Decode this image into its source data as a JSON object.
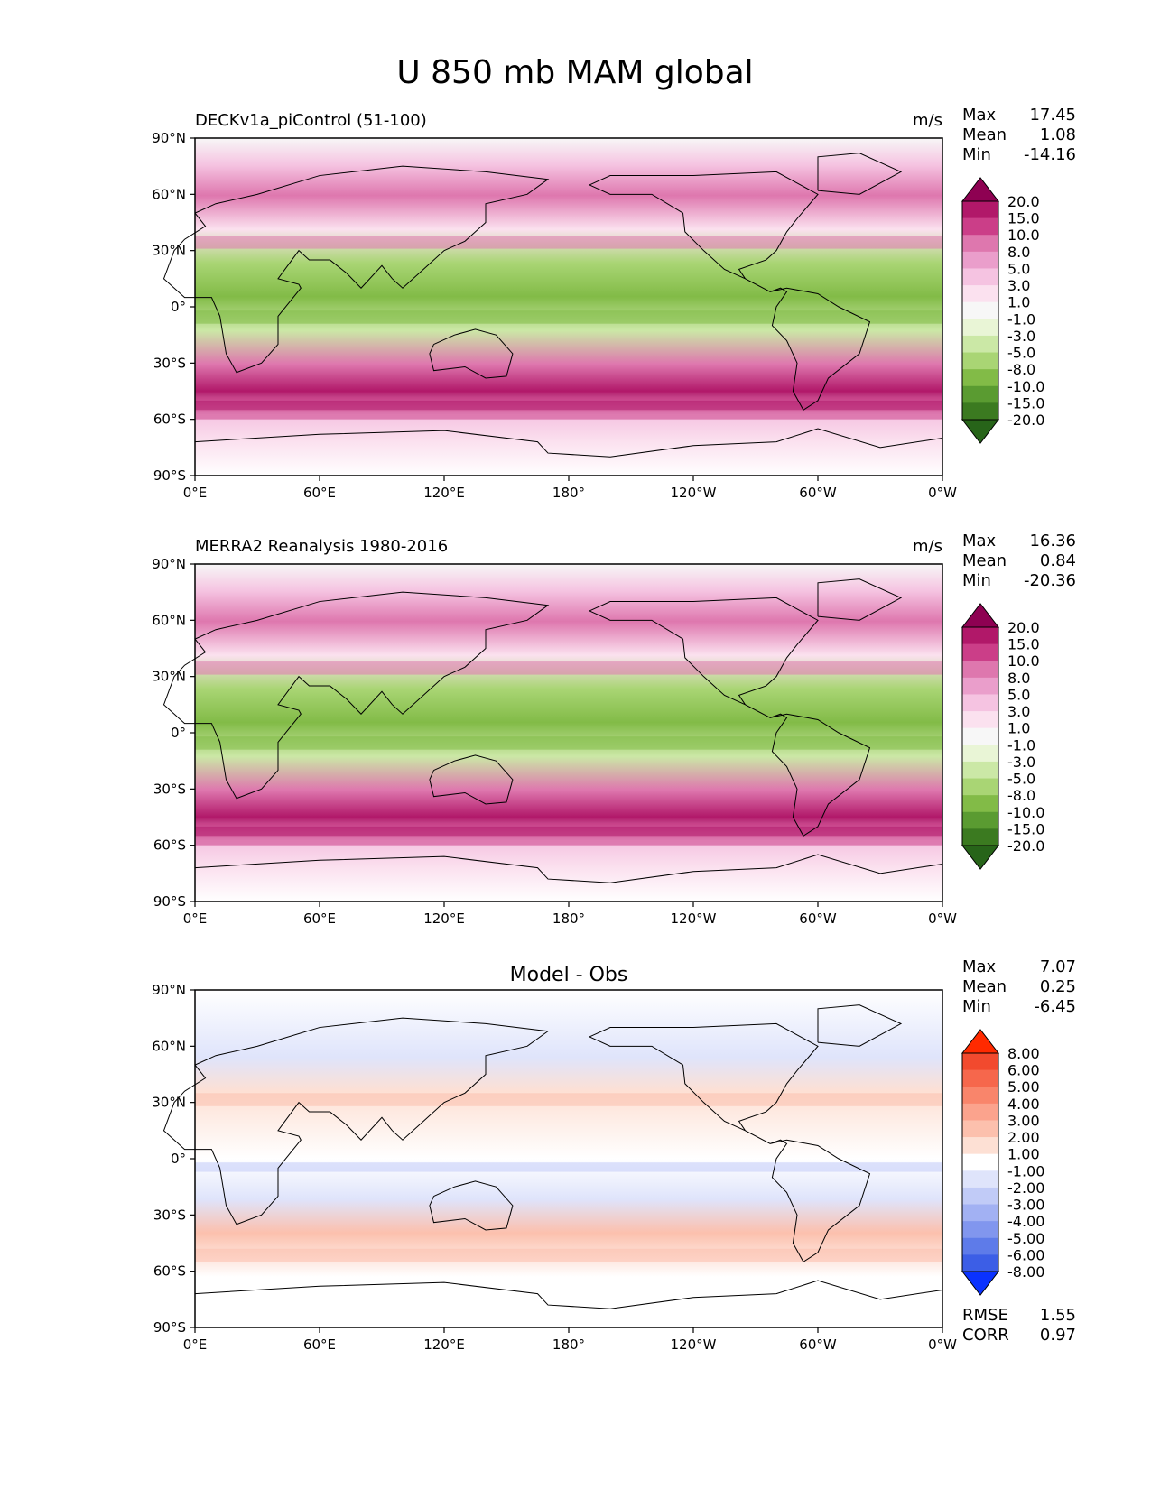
{
  "title": "U 850 mb MAM global",
  "chart_data": [
    {
      "type": "heatmap",
      "panel_title_left": "DECKv1a_piControl (51-100)",
      "panel_title_center": "",
      "units": "m/s",
      "stats": [
        {
          "label": "Max",
          "value": "17.45"
        },
        {
          "label": "Mean",
          "value": "1.08"
        },
        {
          "label": "Min",
          "value": "-14.16"
        }
      ],
      "lat_ticks": [
        "90°N",
        "60°N",
        "30°N",
        "0°",
        "30°S",
        "60°S",
        "90°S"
      ],
      "lon_ticks": [
        "0°E",
        "60°E",
        "120°E",
        "180°",
        "120°W",
        "60°W",
        "0°W"
      ],
      "xlim": [
        0,
        360
      ],
      "ylim": [
        -90,
        90
      ],
      "colorbar": {
        "labels": [
          "20.0",
          "15.0",
          "10.0",
          "8.0",
          "5.0",
          "3.0",
          "1.0",
          "-1.0",
          "-3.0",
          "-5.0",
          "-8.0",
          "-10.0",
          "-15.0",
          "-20.0"
        ],
        "colors": [
          "#8e0152",
          "#b11869",
          "#cb3e88",
          "#de77ae",
          "#ea9ecb",
          "#f5c3e1",
          "#fbe1ef",
          "#f7f7f7",
          "#e9f5d6",
          "#cbe8a6",
          "#a9d574",
          "#82bb47",
          "#5a9b31",
          "#3b7a20",
          "#276419"
        ]
      },
      "extra_stats": []
    },
    {
      "type": "heatmap",
      "panel_title_left": "MERRA2 Reanalysis 1980-2016",
      "panel_title_center": "",
      "units": "m/s",
      "stats": [
        {
          "label": "Max",
          "value": "16.36"
        },
        {
          "label": "Mean",
          "value": "0.84"
        },
        {
          "label": "Min",
          "value": "-20.36"
        }
      ],
      "lat_ticks": [
        "90°N",
        "60°N",
        "30°N",
        "0°",
        "30°S",
        "60°S",
        "90°S"
      ],
      "lon_ticks": [
        "0°E",
        "60°E",
        "120°E",
        "180°",
        "120°W",
        "60°W",
        "0°W"
      ],
      "xlim": [
        0,
        360
      ],
      "ylim": [
        -90,
        90
      ],
      "colorbar": {
        "labels": [
          "20.0",
          "15.0",
          "10.0",
          "8.0",
          "5.0",
          "3.0",
          "1.0",
          "-1.0",
          "-3.0",
          "-5.0",
          "-8.0",
          "-10.0",
          "-15.0",
          "-20.0"
        ],
        "colors": [
          "#8e0152",
          "#b11869",
          "#cb3e88",
          "#de77ae",
          "#ea9ecb",
          "#f5c3e1",
          "#fbe1ef",
          "#f7f7f7",
          "#e9f5d6",
          "#cbe8a6",
          "#a9d574",
          "#82bb47",
          "#5a9b31",
          "#3b7a20",
          "#276419"
        ]
      },
      "extra_stats": []
    },
    {
      "type": "heatmap",
      "panel_title_left": "",
      "panel_title_center": "Model - Obs",
      "units": "",
      "stats": [
        {
          "label": "Max",
          "value": "7.07"
        },
        {
          "label": "Mean",
          "value": "0.25"
        },
        {
          "label": "Min",
          "value": "-6.45"
        }
      ],
      "lat_ticks": [
        "90°N",
        "60°N",
        "30°N",
        "0°",
        "30°S",
        "60°S",
        "90°S"
      ],
      "lon_ticks": [
        "0°E",
        "60°E",
        "120°E",
        "180°",
        "120°W",
        "60°W",
        "0°W"
      ],
      "xlim": [
        0,
        360
      ],
      "ylim": [
        -90,
        90
      ],
      "colorbar": {
        "labels": [
          "8.00",
          "6.00",
          "5.00",
          "4.00",
          "3.00",
          "2.00",
          "1.00",
          "-1.00",
          "-2.00",
          "-3.00",
          "-4.00",
          "-5.00",
          "-6.00",
          "-8.00"
        ],
        "colors": [
          "#ff2a00",
          "#f24a2e",
          "#f6674c",
          "#f9856b",
          "#fba38d",
          "#fcc0ad",
          "#fde0d4",
          "#ffffff",
          "#dfe4fb",
          "#c1cbf7",
          "#a2b1f3",
          "#8196ee",
          "#5e7be9",
          "#3c5ee6",
          "#0a32ff"
        ]
      },
      "extra_stats": [
        {
          "label": "RMSE",
          "value": "1.55"
        },
        {
          "label": "CORR",
          "value": "0.97"
        }
      ]
    }
  ]
}
